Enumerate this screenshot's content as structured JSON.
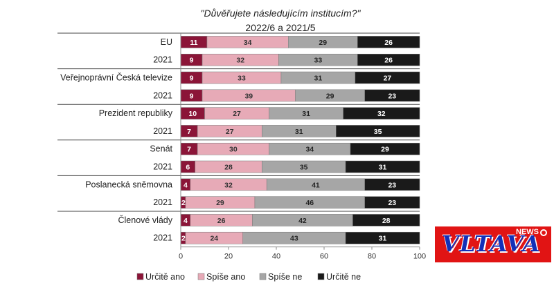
{
  "chart_data": {
    "type": "bar",
    "stacked": true,
    "orientation": "horizontal",
    "title": "\"Důvěřujete následujícím institucím?\"",
    "subtitle": "2022/6 a 2021/5",
    "xlim": [
      0,
      100
    ],
    "x_ticks": [
      "0",
      "20",
      "40",
      "60",
      "80",
      "100"
    ],
    "groups": [
      {
        "name": "EU",
        "rows": [
          {
            "label": "EU",
            "values": [
              11,
              34,
              29,
              26
            ]
          },
          {
            "label": "2021",
            "values": [
              9,
              32,
              33,
              26
            ]
          }
        ]
      },
      {
        "name": "Veřejnoprávní Česká televize",
        "rows": [
          {
            "label": "Veřejnoprávní Česká televize",
            "values": [
              9,
              33,
              31,
              27
            ]
          },
          {
            "label": "2021",
            "values": [
              9,
              39,
              29,
              23
            ]
          }
        ]
      },
      {
        "name": "Prezident republiky",
        "rows": [
          {
            "label": "Prezident republiky",
            "values": [
              10,
              27,
              31,
              32
            ]
          },
          {
            "label": "2021",
            "values": [
              7,
              27,
              31,
              35
            ]
          }
        ]
      },
      {
        "name": "Senát",
        "rows": [
          {
            "label": "Senát",
            "values": [
              7,
              30,
              34,
              29
            ]
          },
          {
            "label": "2021",
            "values": [
              6,
              28,
              35,
              31
            ]
          }
        ]
      },
      {
        "name": "Poslanecká sněmovna",
        "rows": [
          {
            "label": "Poslanecká sněmovna",
            "values": [
              4,
              32,
              41,
              23
            ]
          },
          {
            "label": "2021",
            "values": [
              2,
              29,
              46,
              23
            ]
          }
        ]
      },
      {
        "name": "Členové vlády",
        "rows": [
          {
            "label": "Členové vlády",
            "values": [
              4,
              26,
              42,
              28
            ]
          },
          {
            "label": "2021",
            "values": [
              2,
              24,
              43,
              31
            ]
          }
        ]
      }
    ],
    "series": [
      {
        "name": "Určitě ano",
        "color": "#8b1538",
        "label_color": "#ffffff"
      },
      {
        "name": "Spíše ano",
        "color": "#e7aab7",
        "label_color": "#333333"
      },
      {
        "name": "Spíše ne",
        "color": "#a6a6a6",
        "label_color": "#222222"
      },
      {
        "name": "Určitě ne",
        "color": "#1a1a1a",
        "label_color": "#ffffff"
      }
    ],
    "legend_position": "bottom",
    "grid": false
  },
  "logo": {
    "text": "VLTAVA",
    "sub": "NEWS"
  }
}
